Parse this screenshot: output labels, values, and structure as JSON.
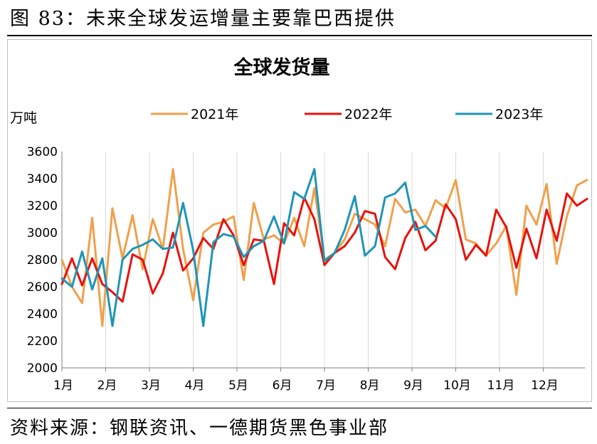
{
  "figure": {
    "title": "图 83：未来全球发运增量主要靠巴西提供",
    "source": "资料来源：钢联资讯、一德期货黑色事业部"
  },
  "chart_data": {
    "type": "line",
    "title": "全球发货量",
    "ylabel": "万吨",
    "xlabel": "",
    "ylim": [
      2000,
      3600
    ],
    "yticks": [
      2000,
      2200,
      2400,
      2600,
      2800,
      3000,
      3200,
      3400,
      3600
    ],
    "months": [
      "1月",
      "2月",
      "3月",
      "4月",
      "5月",
      "6月",
      "7月",
      "8月",
      "9月",
      "10月",
      "11月",
      "12月"
    ],
    "x_unit": "week of year",
    "legend": "top",
    "series": [
      {
        "name": "2021年",
        "color": "#F0A04B",
        "values": [
          2800,
          2600,
          2480,
          3110,
          2310,
          3180,
          2810,
          3130,
          2730,
          3100,
          2880,
          3470,
          2880,
          2500,
          3000,
          3060,
          3080,
          3120,
          2650,
          3220,
          2950,
          2980,
          2920,
          3110,
          2900,
          3330,
          2800,
          2850,
          2950,
          3140,
          3100,
          3060,
          2900,
          3250,
          3150,
          3170,
          3050,
          3240,
          3180,
          3390,
          2950,
          2920,
          2830,
          2920,
          3050,
          2540,
          3200,
          3060,
          3360,
          2770,
          3120,
          3350,
          3390
        ]
      },
      {
        "name": "2022年",
        "color": "#E8120C",
        "values": [
          2620,
          2810,
          2610,
          2810,
          2620,
          2560,
          2490,
          2840,
          2800,
          2550,
          2700,
          3000,
          2720,
          2810,
          2960,
          2880,
          3100,
          2980,
          2760,
          2950,
          2940,
          2620,
          3070,
          2980,
          3260,
          3100,
          2760,
          2850,
          2900,
          3000,
          3160,
          3140,
          2820,
          2730,
          2960,
          3080,
          2870,
          2940,
          3210,
          3100,
          2800,
          2910,
          2830,
          3170,
          3040,
          2740,
          3030,
          2810,
          3170,
          2940,
          3290,
          3200,
          3250
        ]
      },
      {
        "name": "2023年",
        "color": "#1E95B8",
        "values": [
          2660,
          2600,
          2860,
          2580,
          2810,
          2310,
          2800,
          2880,
          2910,
          2950,
          2880,
          2890,
          3220,
          2870,
          2310,
          2930,
          2990,
          2970,
          2820,
          2900,
          2940,
          3120,
          2920,
          3300,
          3250,
          3470,
          2790,
          2850,
          3020,
          3270,
          2830,
          2900,
          3260,
          3290,
          3370,
          3020,
          3050,
          2970
        ]
      }
    ]
  }
}
